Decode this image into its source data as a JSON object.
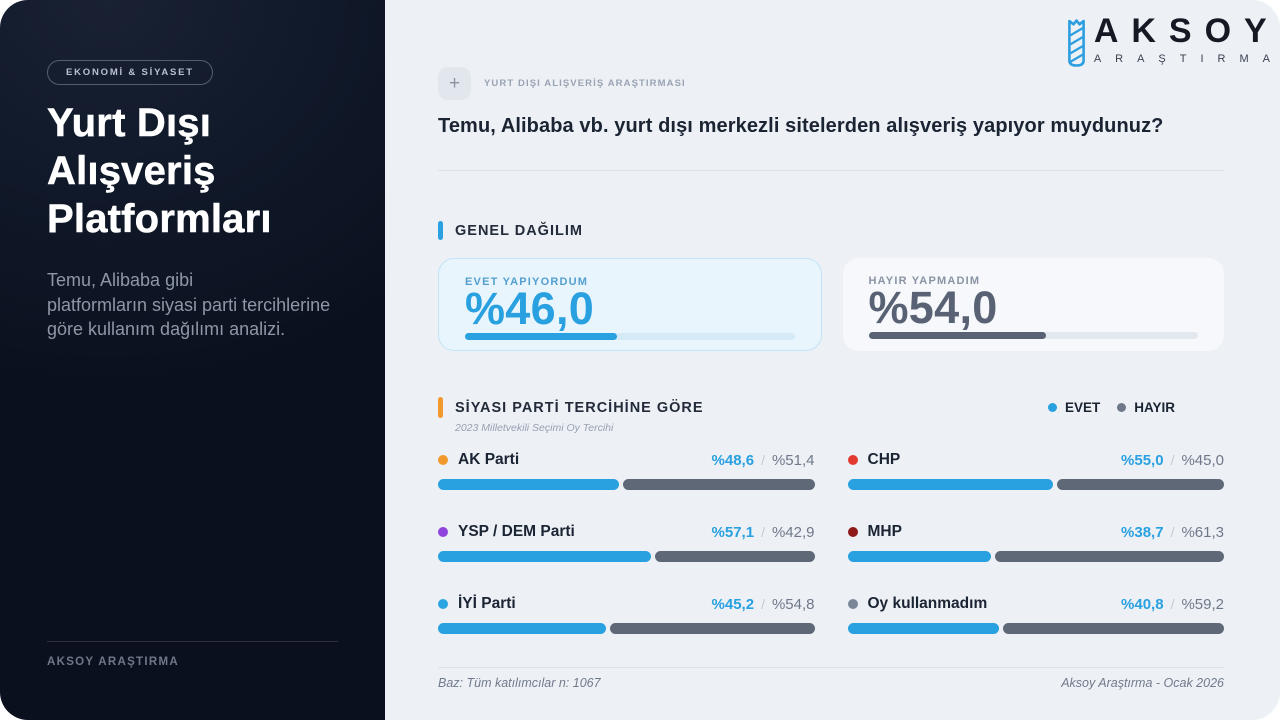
{
  "colors": {
    "accent_blue": "#29a0e0",
    "accent_orange": "#f2992e",
    "sidebar_bg": "#0c1322",
    "panel_bg": "#edf1f6",
    "text_dark": "#1b2433",
    "text_gray": "#6e7888",
    "bar_gray": "#5f6876"
  },
  "sidebar": {
    "badge": "EKONOMİ & SİYASET",
    "title_lines": [
      "Yurt Dışı",
      "Alışveriş",
      "Platformları"
    ],
    "description_lines": [
      "Temu, Alibaba gibi",
      "platformların siyasi parti tercihlerine",
      "göre kullanım dağılımı analizi."
    ],
    "footer": "AKSOY ARAŞTIRMA"
  },
  "logo": {
    "name": "AKSOY",
    "subtitle": "ARAŞTIRMA",
    "icon_color": "#2d9fe0"
  },
  "header": {
    "plus": "+",
    "eyebrow": "YURT DIŞI ALIŞVERİŞ ARAŞTIRMASI",
    "question": "Temu, Alibaba vb. yurt dışı merkezli sitelerden alışveriş yapıyor muydunuz?"
  },
  "general": {
    "heading": "GENEL DAĞILIM",
    "cards": [
      {
        "label": "EVET YAPIYORDUM",
        "value": 46.0,
        "value_display": "%46,0",
        "theme": "blue"
      },
      {
        "label": "HAYIR YAPMADIM",
        "value": 54.0,
        "value_display": "%54,0",
        "theme": "gray"
      }
    ]
  },
  "parties": {
    "heading": "SİYASI PARTİ TERCİHİNE GÖRE",
    "subtitle": "2023 Milletvekili Seçimi Oy Tercihi",
    "legend": [
      {
        "label": "EVET",
        "color": "#29a0e0"
      },
      {
        "label": "HAYIR",
        "color": "#6e7888"
      }
    ],
    "items": [
      {
        "name": "AK Parti",
        "dot": "#f2992e",
        "yes": 48.6,
        "no": 51.4,
        "yes_display": "%48,6",
        "no_display": "%51,4"
      },
      {
        "name": "CHP",
        "dot": "#e23a31",
        "yes": 55.0,
        "no": 45.0,
        "yes_display": "%55,0",
        "no_display": "%45,0"
      },
      {
        "name": "YSP / DEM Parti",
        "dot": "#8e44dd",
        "yes": 57.1,
        "no": 42.9,
        "yes_display": "%57,1",
        "no_display": "%42,9"
      },
      {
        "name": "MHP",
        "dot": "#8e1a1a",
        "yes": 38.7,
        "no": 61.3,
        "yes_display": "%38,7",
        "no_display": "%61,3"
      },
      {
        "name": "İYİ Parti",
        "dot": "#2aa5e2",
        "yes": 45.2,
        "no": 54.8,
        "yes_display": "%45,2",
        "no_display": "%54,8"
      },
      {
        "name": "Oy kullanmadım",
        "dot": "#7b8698",
        "yes": 40.8,
        "no": 59.2,
        "yes_display": "%40,8",
        "no_display": "%59,2"
      }
    ]
  },
  "footer": {
    "base": "Baz: Tüm katılımcılar n: 1067",
    "source": "Aksoy Araştırma - Ocak 2026"
  },
  "chart_data": [
    {
      "type": "bar",
      "title": "GENEL DAĞILIM",
      "categories": [
        "EVET YAPIYORDUM",
        "HAYIR YAPMADIM"
      ],
      "values": [
        46.0,
        54.0
      ],
      "unit": "%",
      "colors": [
        "#29a0e0",
        "#596274"
      ]
    },
    {
      "type": "bar",
      "title": "SİYASI PARTİ TERCİHİNE GÖRE",
      "subtitle": "2023 Milletvekili Seçimi Oy Tercihi",
      "categories": [
        "AK Parti",
        "CHP",
        "YSP / DEM Parti",
        "MHP",
        "İYİ Parti",
        "Oy kullanmadım"
      ],
      "series": [
        {
          "name": "EVET",
          "values": [
            48.6,
            55.0,
            57.1,
            38.7,
            45.2,
            40.8
          ],
          "color": "#29a0e0"
        },
        {
          "name": "HAYIR",
          "values": [
            51.4,
            45.0,
            42.9,
            61.3,
            54.8,
            59.2
          ],
          "color": "#5f6876"
        }
      ],
      "legend_position": "top-right",
      "xlim": [
        0,
        100
      ]
    }
  ]
}
